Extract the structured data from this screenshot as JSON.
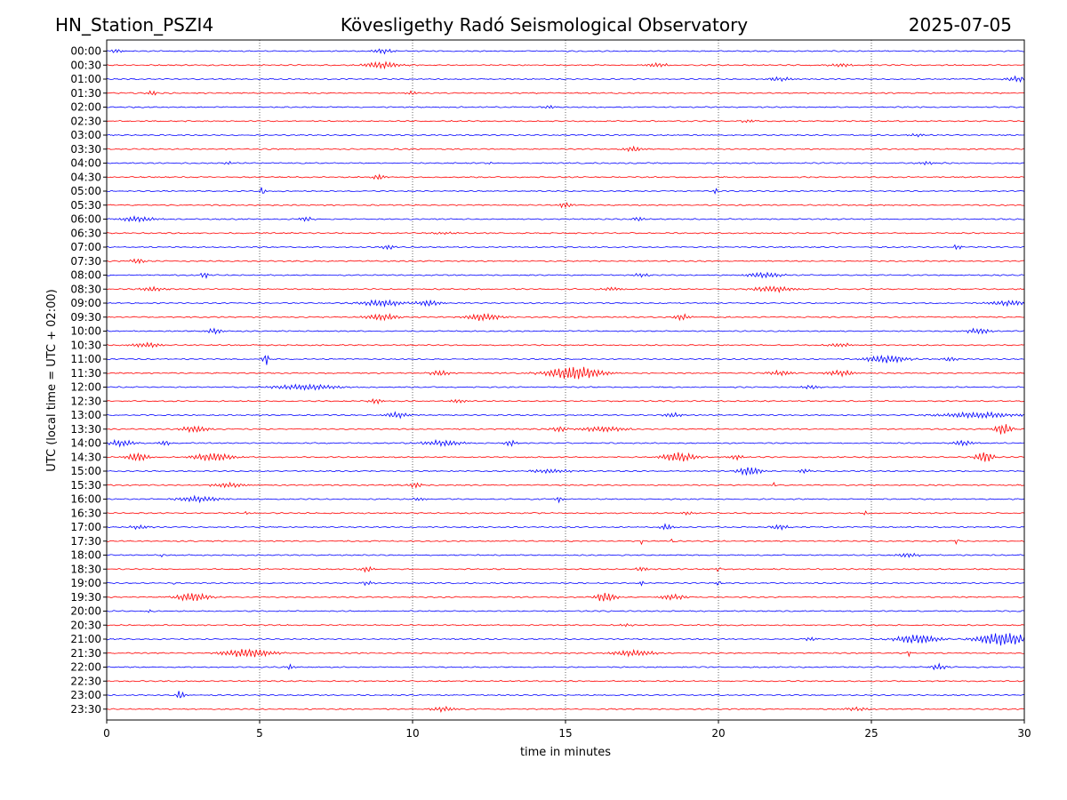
{
  "header": {
    "station": "HN_Station_PSZI4",
    "observatory": "Kövesligethy Radó Seismological Observatory",
    "date": "2025-07-05"
  },
  "chart_data": {
    "type": "line",
    "title": "Kövesligethy Radó Seismological Observatory",
    "xlabel": "time in minutes",
    "ylabel": "UTC (local time = UTC + 02:00)",
    "xlim": [
      0,
      30
    ],
    "x_ticks": [
      "0",
      "5",
      "10",
      "15",
      "20",
      "25",
      "30"
    ],
    "x_tick_values": [
      0,
      5,
      10,
      15,
      20,
      25,
      30
    ],
    "vertical_gridlines_at": [
      5,
      10,
      15,
      20,
      25
    ],
    "grid": "vertical dotted",
    "trace_colors": [
      "#0000ff",
      "#ff0000"
    ],
    "rows": [
      {
        "label": "00:00",
        "events": [
          {
            "t": 9.0,
            "a": 2.5,
            "d": 0.5
          },
          {
            "t": 0.3,
            "a": 2,
            "d": 0.3
          }
        ]
      },
      {
        "label": "00:30",
        "events": [
          {
            "t": 9.0,
            "a": 3.5,
            "d": 0.8
          },
          {
            "t": 18.0,
            "a": 2,
            "d": 0.6
          },
          {
            "t": 24.0,
            "a": 2,
            "d": 0.5
          }
        ]
      },
      {
        "label": "01:00",
        "events": [
          {
            "t": 29.8,
            "a": 3,
            "d": 0.5
          },
          {
            "t": 22.0,
            "a": 2,
            "d": 0.6
          }
        ]
      },
      {
        "label": "01:30",
        "events": [
          {
            "t": 1.5,
            "a": 3,
            "d": 0.2
          },
          {
            "t": 10.0,
            "a": 2,
            "d": 0.2
          }
        ]
      },
      {
        "label": "02:00",
        "events": [
          {
            "t": 14.5,
            "a": 1.5,
            "d": 0.4
          }
        ]
      },
      {
        "label": "02:30",
        "events": [
          {
            "t": 21.0,
            "a": 1.5,
            "d": 0.4
          }
        ]
      },
      {
        "label": "03:00",
        "events": [
          {
            "t": 26.5,
            "a": 1.5,
            "d": 0.4
          }
        ]
      },
      {
        "label": "03:30",
        "events": [
          {
            "t": 17.2,
            "a": 2.5,
            "d": 0.5
          }
        ]
      },
      {
        "label": "04:00",
        "events": [
          {
            "t": 4.0,
            "a": 2,
            "d": 0.2
          },
          {
            "t": 12.5,
            "a": 2,
            "d": 0.1
          },
          {
            "t": 26.8,
            "a": 2,
            "d": 0.4
          }
        ]
      },
      {
        "label": "04:30",
        "events": [
          {
            "t": 8.9,
            "a": 3,
            "d": 0.3
          }
        ]
      },
      {
        "label": "05:00",
        "events": [
          {
            "t": 5.1,
            "a": 6,
            "d": 0.1
          },
          {
            "t": 19.9,
            "a": 4,
            "d": 0.08
          }
        ]
      },
      {
        "label": "05:30",
        "events": [
          {
            "t": 15.0,
            "a": 3,
            "d": 0.3
          }
        ]
      },
      {
        "label": "06:00",
        "events": [
          {
            "t": 1.0,
            "a": 3,
            "d": 0.8
          },
          {
            "t": 6.5,
            "a": 2.5,
            "d": 0.3
          },
          {
            "t": 17.4,
            "a": 2,
            "d": 0.3
          }
        ]
      },
      {
        "label": "06:30",
        "events": [
          {
            "t": 11.0,
            "a": 1.2,
            "d": 0.6
          }
        ]
      },
      {
        "label": "07:00",
        "events": [
          {
            "t": 9.2,
            "a": 2.5,
            "d": 0.3
          },
          {
            "t": 27.8,
            "a": 2.5,
            "d": 0.2
          }
        ]
      },
      {
        "label": "07:30",
        "events": [
          {
            "t": 1.0,
            "a": 3,
            "d": 0.3
          }
        ]
      },
      {
        "label": "08:00",
        "events": [
          {
            "t": 3.2,
            "a": 3.5,
            "d": 0.2
          },
          {
            "t": 21.5,
            "a": 3,
            "d": 0.8
          },
          {
            "t": 17.5,
            "a": 2,
            "d": 0.4
          }
        ]
      },
      {
        "label": "08:30",
        "events": [
          {
            "t": 1.5,
            "a": 2.5,
            "d": 0.6
          },
          {
            "t": 21.8,
            "a": 3,
            "d": 1.0
          },
          {
            "t": 16.5,
            "a": 2,
            "d": 0.5
          }
        ]
      },
      {
        "label": "09:00",
        "events": [
          {
            "t": 9.0,
            "a": 3.5,
            "d": 1.0
          },
          {
            "t": 10.5,
            "a": 3,
            "d": 0.6
          },
          {
            "t": 29.5,
            "a": 3,
            "d": 0.8
          }
        ]
      },
      {
        "label": "09:30",
        "events": [
          {
            "t": 9.0,
            "a": 3.5,
            "d": 0.8
          },
          {
            "t": 12.3,
            "a": 4,
            "d": 0.8
          },
          {
            "t": 18.8,
            "a": 3,
            "d": 0.4
          }
        ]
      },
      {
        "label": "10:00",
        "events": [
          {
            "t": 3.5,
            "a": 3,
            "d": 0.4
          },
          {
            "t": 28.5,
            "a": 3,
            "d": 0.6
          }
        ]
      },
      {
        "label": "10:30",
        "events": [
          {
            "t": 1.3,
            "a": 2.5,
            "d": 0.8
          },
          {
            "t": 24.0,
            "a": 2,
            "d": 0.6
          }
        ]
      },
      {
        "label": "11:00",
        "events": [
          {
            "t": 5.2,
            "a": 7,
            "d": 0.15
          },
          {
            "t": 25.5,
            "a": 4,
            "d": 1.0
          },
          {
            "t": 27.6,
            "a": 2.5,
            "d": 0.3
          }
        ]
      },
      {
        "label": "11:30",
        "events": [
          {
            "t": 15.3,
            "a": 7,
            "d": 1.3
          },
          {
            "t": 10.9,
            "a": 3,
            "d": 0.5
          },
          {
            "t": 24.0,
            "a": 3,
            "d": 0.7
          },
          {
            "t": 22.0,
            "a": 2.5,
            "d": 0.6
          }
        ]
      },
      {
        "label": "12:00",
        "events": [
          {
            "t": 6.5,
            "a": 3,
            "d": 1.5
          },
          {
            "t": 23.0,
            "a": 2,
            "d": 0.5
          }
        ]
      },
      {
        "label": "12:30",
        "events": [
          {
            "t": 8.8,
            "a": 3,
            "d": 0.3
          },
          {
            "t": 11.5,
            "a": 2,
            "d": 0.4
          }
        ]
      },
      {
        "label": "13:00",
        "events": [
          {
            "t": 9.5,
            "a": 3,
            "d": 0.6
          },
          {
            "t": 28.5,
            "a": 3,
            "d": 1.8
          },
          {
            "t": 18.5,
            "a": 2.5,
            "d": 0.4
          }
        ]
      },
      {
        "label": "13:30",
        "events": [
          {
            "t": 2.9,
            "a": 3.5,
            "d": 0.6
          },
          {
            "t": 16.2,
            "a": 3,
            "d": 1.0
          },
          {
            "t": 29.3,
            "a": 6,
            "d": 0.4
          },
          {
            "t": 14.8,
            "a": 3,
            "d": 0.4
          }
        ]
      },
      {
        "label": "14:00",
        "events": [
          {
            "t": 0.5,
            "a": 3.5,
            "d": 0.6
          },
          {
            "t": 11.0,
            "a": 3,
            "d": 1.0
          },
          {
            "t": 13.2,
            "a": 3,
            "d": 0.3
          },
          {
            "t": 28.0,
            "a": 3,
            "d": 0.5
          },
          {
            "t": 1.9,
            "a": 2.5,
            "d": 0.3
          }
        ]
      },
      {
        "label": "14:30",
        "events": [
          {
            "t": 1.0,
            "a": 5,
            "d": 0.5
          },
          {
            "t": 3.5,
            "a": 4.5,
            "d": 0.9
          },
          {
            "t": 18.7,
            "a": 5,
            "d": 0.8
          },
          {
            "t": 28.7,
            "a": 6,
            "d": 0.4
          },
          {
            "t": 20.6,
            "a": 3,
            "d": 0.3
          }
        ]
      },
      {
        "label": "15:00",
        "events": [
          {
            "t": 21.0,
            "a": 4.5,
            "d": 0.6
          },
          {
            "t": 14.5,
            "a": 2,
            "d": 1.0
          },
          {
            "t": 22.8,
            "a": 2.5,
            "d": 0.3
          }
        ]
      },
      {
        "label": "15:30",
        "events": [
          {
            "t": 10.1,
            "a": 3,
            "d": 0.3
          },
          {
            "t": 4.0,
            "a": 2.5,
            "d": 0.8
          },
          {
            "t": 21.8,
            "a": 2.5,
            "d": 0.1
          }
        ]
      },
      {
        "label": "16:00",
        "events": [
          {
            "t": 3.0,
            "a": 3,
            "d": 1.0
          },
          {
            "t": 14.8,
            "a": 3,
            "d": 0.2
          },
          {
            "t": 10.2,
            "a": 2,
            "d": 0.3
          }
        ]
      },
      {
        "label": "16:30",
        "events": [
          {
            "t": 4.6,
            "a": 2.5,
            "d": 0.1
          },
          {
            "t": 19.0,
            "a": 1.5,
            "d": 0.4
          },
          {
            "t": 24.8,
            "a": 2,
            "d": 0.2
          }
        ]
      },
      {
        "label": "17:00",
        "events": [
          {
            "t": 1.1,
            "a": 2,
            "d": 0.5
          },
          {
            "t": 18.3,
            "a": 3,
            "d": 0.3
          },
          {
            "t": 22.0,
            "a": 2.5,
            "d": 0.4
          }
        ]
      },
      {
        "label": "17:30",
        "events": [
          {
            "t": 17.5,
            "a": 3.5,
            "d": 0.05
          },
          {
            "t": 27.8,
            "a": 3.5,
            "d": 0.1
          },
          {
            "t": 18.5,
            "a": 3,
            "d": 0.05
          }
        ]
      },
      {
        "label": "18:00",
        "events": [
          {
            "t": 26.2,
            "a": 2.5,
            "d": 0.5
          },
          {
            "t": 1.8,
            "a": 2,
            "d": 0.05
          }
        ]
      },
      {
        "label": "18:30",
        "events": [
          {
            "t": 8.5,
            "a": 3,
            "d": 0.3
          },
          {
            "t": 17.5,
            "a": 2.5,
            "d": 0.3
          },
          {
            "t": 20.0,
            "a": 2.5,
            "d": 0.1
          }
        ]
      },
      {
        "label": "19:00",
        "events": [
          {
            "t": 2.2,
            "a": 3,
            "d": 0.05
          },
          {
            "t": 17.5,
            "a": 3,
            "d": 0.1
          },
          {
            "t": 20.0,
            "a": 3,
            "d": 0.1
          },
          {
            "t": 8.5,
            "a": 2,
            "d": 0.3
          }
        ]
      },
      {
        "label": "19:30",
        "events": [
          {
            "t": 2.8,
            "a": 4.5,
            "d": 0.8
          },
          {
            "t": 16.3,
            "a": 5,
            "d": 0.5
          },
          {
            "t": 18.5,
            "a": 3,
            "d": 0.6
          }
        ]
      },
      {
        "label": "20:00",
        "events": [
          {
            "t": 1.4,
            "a": 3,
            "d": 0.05
          }
        ]
      },
      {
        "label": "20:30",
        "events": [
          {
            "t": 17.0,
            "a": 1.5,
            "d": 0.3
          }
        ]
      },
      {
        "label": "21:00",
        "events": [
          {
            "t": 26.5,
            "a": 5,
            "d": 1.0
          },
          {
            "t": 29.3,
            "a": 7,
            "d": 1.2
          },
          {
            "t": 23.0,
            "a": 2,
            "d": 0.3
          }
        ]
      },
      {
        "label": "21:30",
        "events": [
          {
            "t": 4.6,
            "a": 4.5,
            "d": 1.2
          },
          {
            "t": 17.2,
            "a": 3,
            "d": 1.0
          },
          {
            "t": 26.2,
            "a": 4,
            "d": 0.1
          }
        ]
      },
      {
        "label": "22:00",
        "events": [
          {
            "t": 6.0,
            "a": 3,
            "d": 0.2
          },
          {
            "t": 27.2,
            "a": 3,
            "d": 0.4
          }
        ]
      },
      {
        "label": "22:30",
        "events": []
      },
      {
        "label": "23:00",
        "events": [
          {
            "t": 2.4,
            "a": 5,
            "d": 0.2
          }
        ]
      },
      {
        "label": "23:30",
        "events": [
          {
            "t": 11.0,
            "a": 2.5,
            "d": 0.6
          },
          {
            "t": 24.5,
            "a": 2,
            "d": 0.6
          }
        ]
      }
    ]
  }
}
